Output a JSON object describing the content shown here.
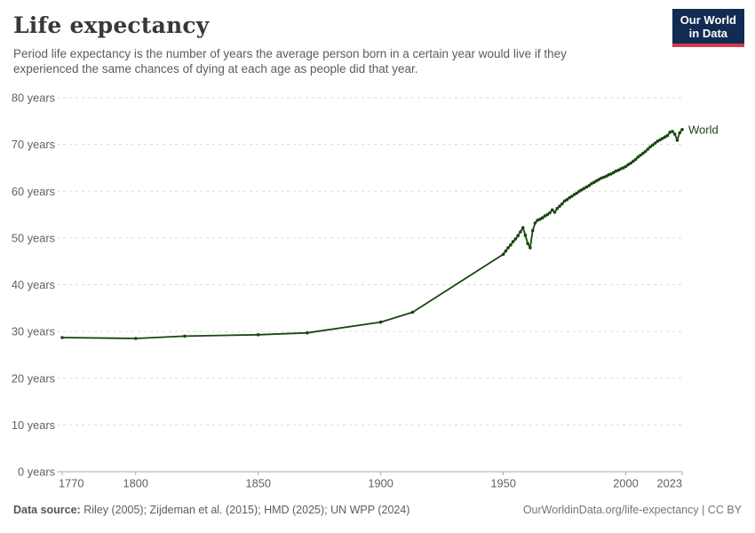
{
  "header": {
    "title": "Life expectancy",
    "subtitle_line1": "Period life expectancy is the number of years the average person born in a certain year would live if they",
    "subtitle_line2": "experienced the same chances of dying at each age as people did that year.",
    "logo": {
      "line1": "Our World",
      "line2": "in Data",
      "bg_color": "#122B52",
      "accent_color": "#D13B4C"
    }
  },
  "chart_data": {
    "type": "line",
    "title": "Life expectancy",
    "xlabel": "",
    "ylabel": "",
    "xlim": [
      1770,
      2023
    ],
    "ylim": [
      0,
      80
    ],
    "x_ticks": [
      1770,
      1800,
      1850,
      1900,
      1950,
      2000,
      2023
    ],
    "y_ticks": [
      0,
      10,
      20,
      30,
      40,
      50,
      60,
      70,
      80
    ],
    "y_tick_suffix": " years",
    "grid": "dashed-horizontal",
    "grid_color": "#dadada",
    "axis_color": "#a8a8a8",
    "tick_label_color": "#616161",
    "legend_position": "end-of-line",
    "series": [
      {
        "name": "World",
        "color": "#18470F",
        "end_label": "World",
        "points": [
          [
            1770,
            28.7
          ],
          [
            1800,
            28.5
          ],
          [
            1820,
            29.0
          ],
          [
            1850,
            29.3
          ],
          [
            1870,
            29.7
          ],
          [
            1900,
            32.0
          ],
          [
            1913,
            34.1
          ],
          [
            1950,
            46.5
          ],
          [
            1951,
            47.2
          ],
          [
            1952,
            47.9
          ],
          [
            1953,
            48.5
          ],
          [
            1954,
            49.2
          ],
          [
            1955,
            49.8
          ],
          [
            1956,
            50.5
          ],
          [
            1957,
            51.3
          ],
          [
            1958,
            52.2
          ],
          [
            1959,
            50.6
          ],
          [
            1960,
            48.8
          ],
          [
            1961,
            47.9
          ],
          [
            1962,
            51.6
          ],
          [
            1963,
            53.2
          ],
          [
            1964,
            53.8
          ],
          [
            1965,
            54.0
          ],
          [
            1966,
            54.3
          ],
          [
            1967,
            54.7
          ],
          [
            1968,
            55.0
          ],
          [
            1969,
            55.4
          ],
          [
            1970,
            56.0
          ],
          [
            1971,
            55.5
          ],
          [
            1972,
            56.3
          ],
          [
            1973,
            56.8
          ],
          [
            1974,
            57.3
          ],
          [
            1975,
            57.9
          ],
          [
            1976,
            58.2
          ],
          [
            1977,
            58.6
          ],
          [
            1978,
            58.9
          ],
          [
            1979,
            59.3
          ],
          [
            1980,
            59.6
          ],
          [
            1981,
            60.0
          ],
          [
            1982,
            60.3
          ],
          [
            1983,
            60.6
          ],
          [
            1984,
            60.9
          ],
          [
            1985,
            61.2
          ],
          [
            1986,
            61.6
          ],
          [
            1987,
            61.9
          ],
          [
            1988,
            62.2
          ],
          [
            1989,
            62.5
          ],
          [
            1990,
            62.8
          ],
          [
            1991,
            63.0
          ],
          [
            1992,
            63.2
          ],
          [
            1993,
            63.5
          ],
          [
            1994,
            63.7
          ],
          [
            1995,
            64.0
          ],
          [
            1996,
            64.3
          ],
          [
            1997,
            64.5
          ],
          [
            1998,
            64.8
          ],
          [
            1999,
            65.0
          ],
          [
            2000,
            65.3
          ],
          [
            2001,
            65.7
          ],
          [
            2002,
            66.0
          ],
          [
            2003,
            66.4
          ],
          [
            2004,
            66.8
          ],
          [
            2005,
            67.3
          ],
          [
            2006,
            67.7
          ],
          [
            2007,
            68.1
          ],
          [
            2008,
            68.5
          ],
          [
            2009,
            69.0
          ],
          [
            2010,
            69.5
          ],
          [
            2011,
            69.9
          ],
          [
            2012,
            70.3
          ],
          [
            2013,
            70.7
          ],
          [
            2014,
            71.0
          ],
          [
            2015,
            71.3
          ],
          [
            2016,
            71.6
          ],
          [
            2017,
            71.9
          ],
          [
            2018,
            72.6
          ],
          [
            2019,
            72.8
          ],
          [
            2020,
            72.2
          ],
          [
            2021,
            70.9
          ],
          [
            2022,
            72.5
          ],
          [
            2023,
            73.2
          ]
        ]
      }
    ]
  },
  "footer": {
    "source_label": "Data source:",
    "source_text": " Riley (2005); Zijdeman et al. (2015); HMD (2025); UN WPP (2024)",
    "attribution": "OurWorldinData.org/life-expectancy | CC BY"
  }
}
